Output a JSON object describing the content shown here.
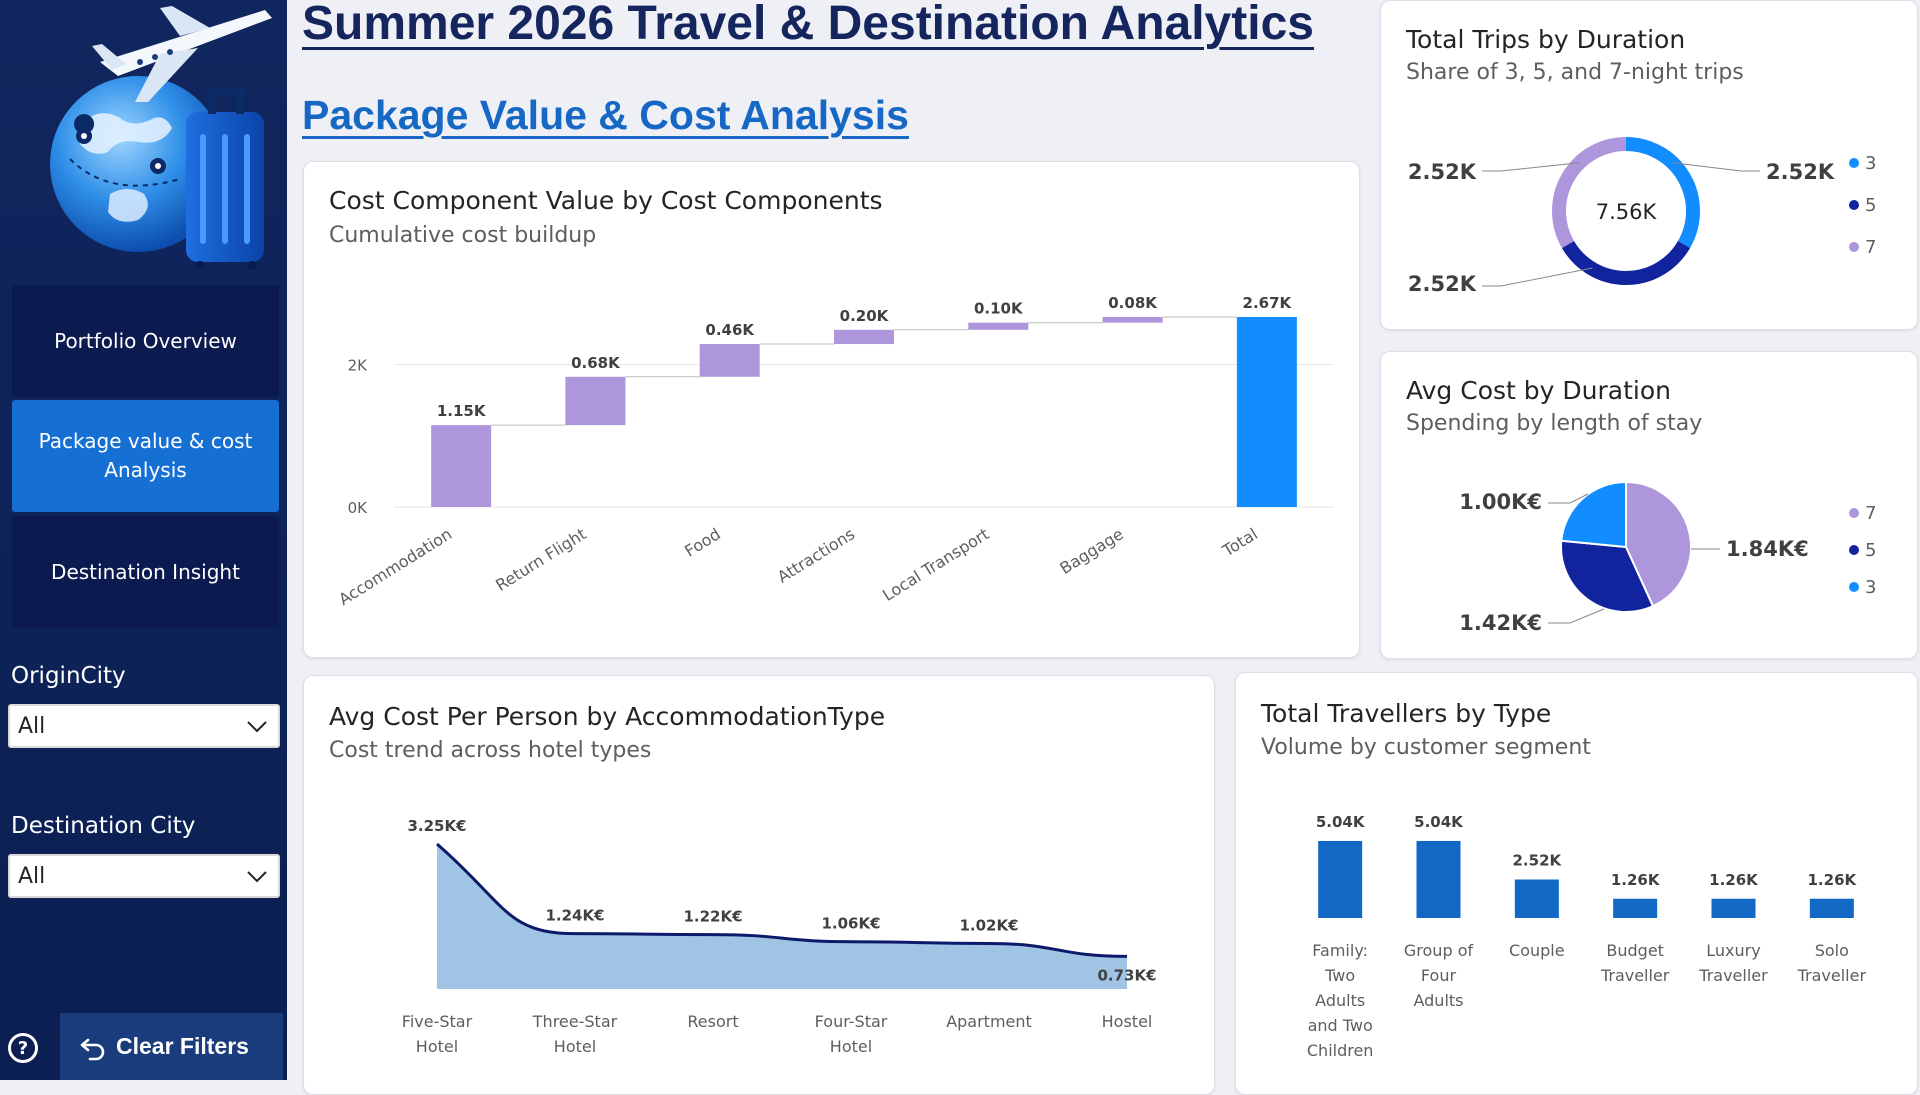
{
  "header": {
    "title": "Summer 2026 Travel & Destination Analytics",
    "subtitle": "Package Value & Cost Analysis"
  },
  "sidebar": {
    "logo_icon": "globe-plane-suitcase-icon",
    "nav": [
      {
        "label": "Portfolio Overview",
        "active": false
      },
      {
        "label": "Package value & cost Analysis",
        "active": true
      },
      {
        "label": "Destination Insight",
        "active": false
      }
    ],
    "filters": {
      "origin": {
        "label": "OriginCity",
        "value": "All"
      },
      "destination": {
        "label": "Destination City",
        "value": "All"
      }
    },
    "help_icon": "?",
    "clear_filters": "Clear Filters"
  },
  "colors": {
    "sidebar": "#10265e",
    "active_nav": "#1670d4",
    "lavender": "#ae96dc",
    "blue": "#118dff",
    "navy": "#12239e",
    "bar_blue": "#1168c5",
    "area_fill": "#a0c4e4",
    "area_line": "#0d1a6b"
  },
  "charts": {
    "waterfall": {
      "title": "Cost Component Value by Cost Components",
      "subtitle": "Cumulative cost buildup",
      "chart_data": {
        "type": "bar",
        "subtype": "waterfall",
        "categories": [
          "Accommodation",
          "Return Flight",
          "Food",
          "Attractions",
          "Local Transport",
          "Baggage",
          "Total"
        ],
        "values": [
          1150,
          680,
          460,
          200,
          100,
          80,
          2670
        ],
        "labels": [
          "1.15K",
          "0.68K",
          "0.46K",
          "0.20K",
          "0.10K",
          "0.08K",
          "2.67K"
        ],
        "y_ticks": [
          "0K",
          "2K"
        ],
        "ylim": [
          0,
          2670
        ],
        "colors": {
          "increase": "#ae96dc",
          "total": "#118dff"
        }
      }
    },
    "trips_donut": {
      "title": "Total Trips by Duration",
      "subtitle": "Share of 3, 5, and 7-night trips",
      "center_label": "7.56K",
      "chart_data": {
        "type": "pie",
        "subtype": "donut",
        "categories": [
          "3",
          "5",
          "7"
        ],
        "values": [
          2520,
          2520,
          2520
        ],
        "labels": [
          "2.52K",
          "2.52K",
          "2.52K"
        ],
        "colors": [
          "#118dff",
          "#12239e",
          "#ae96dc"
        ],
        "legend": "right"
      }
    },
    "cost_pie": {
      "title": "Avg Cost by Duration",
      "subtitle": "Spending by length of stay",
      "chart_data": {
        "type": "pie",
        "categories": [
          "7",
          "5",
          "3"
        ],
        "values": [
          1840,
          1420,
          1000
        ],
        "labels": [
          "1.84K€",
          "1.42K€",
          "1.00K€"
        ],
        "colors": [
          "#ae96dc",
          "#12239e",
          "#118dff"
        ],
        "legend": "right"
      }
    },
    "area": {
      "title": "Avg Cost Per Person by AccommodationType",
      "subtitle": "Cost trend across hotel types",
      "chart_data": {
        "type": "area",
        "categories": [
          "Five-Star Hotel",
          "Three-Star Hotel",
          "Resort",
          "Four-Star Hotel",
          "Apartment",
          "Hostel"
        ],
        "values": [
          3250,
          1240,
          1220,
          1060,
          1020,
          730
        ],
        "labels": [
          "3.25K€",
          "1.24K€",
          "1.22K€",
          "1.06K€",
          "1.02K€",
          "0.73K€"
        ],
        "ylim": [
          0,
          3250
        ]
      }
    },
    "travellers": {
      "title": "Total Travellers by Type",
      "subtitle": "Volume by customer segment",
      "chart_data": {
        "type": "bar",
        "categories": [
          "Family: Two Adults and Two Children",
          "Group of Four Adults",
          "Couple",
          "Budget Traveller",
          "Luxury Traveller",
          "Solo Traveller"
        ],
        "values": [
          5040,
          5040,
          2520,
          1260,
          1260,
          1260
        ],
        "labels": [
          "5.04K",
          "5.04K",
          "2.52K",
          "1.26K",
          "1.26K",
          "1.26K"
        ],
        "ylim": [
          0,
          5040
        ]
      }
    }
  }
}
